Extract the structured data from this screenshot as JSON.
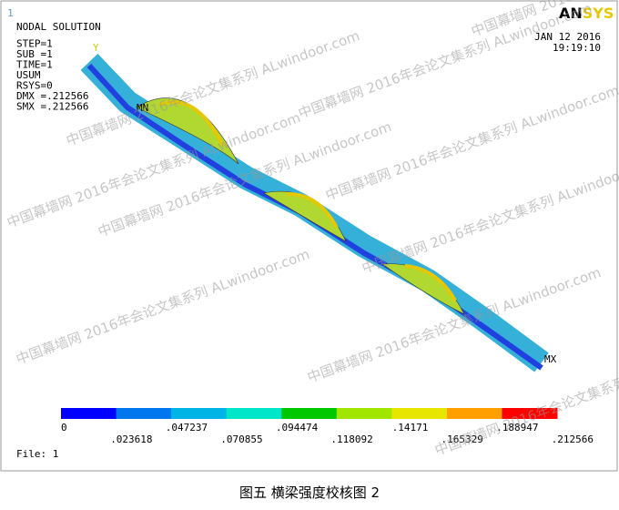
{
  "corner_mark": "1",
  "info": [
    "NODAL SOLUTION",
    "STEP=1",
    "SUB =1",
    "TIME=1",
    "USUM",
    "RSYS=0",
    "DMX =.212566",
    "SMX =.212566"
  ],
  "date": "JAN 12 2016",
  "time": "19:19:10",
  "logo": {
    "a": "AN",
    "b": "SYS"
  },
  "labels": {
    "min": "MN",
    "max": "MX",
    "axis": "Y"
  },
  "legend": {
    "colors": [
      "#0000ff",
      "#0077ee",
      "#00b4e6",
      "#00e6c8",
      "#00c800",
      "#a0e600",
      "#e6e600",
      "#ffa000",
      "#ff0000"
    ],
    "labels": [
      "0",
      ".023618",
      ".047237",
      ".070855",
      ".094474",
      ".118092",
      ".14171",
      ".165329",
      ".188947",
      ".212566"
    ]
  },
  "file": "File: 1",
  "watermark": "中国幕墙网 2016年会论文集系列 ALwindoor.com",
  "caption": "图五  横梁强度校核图 2"
}
